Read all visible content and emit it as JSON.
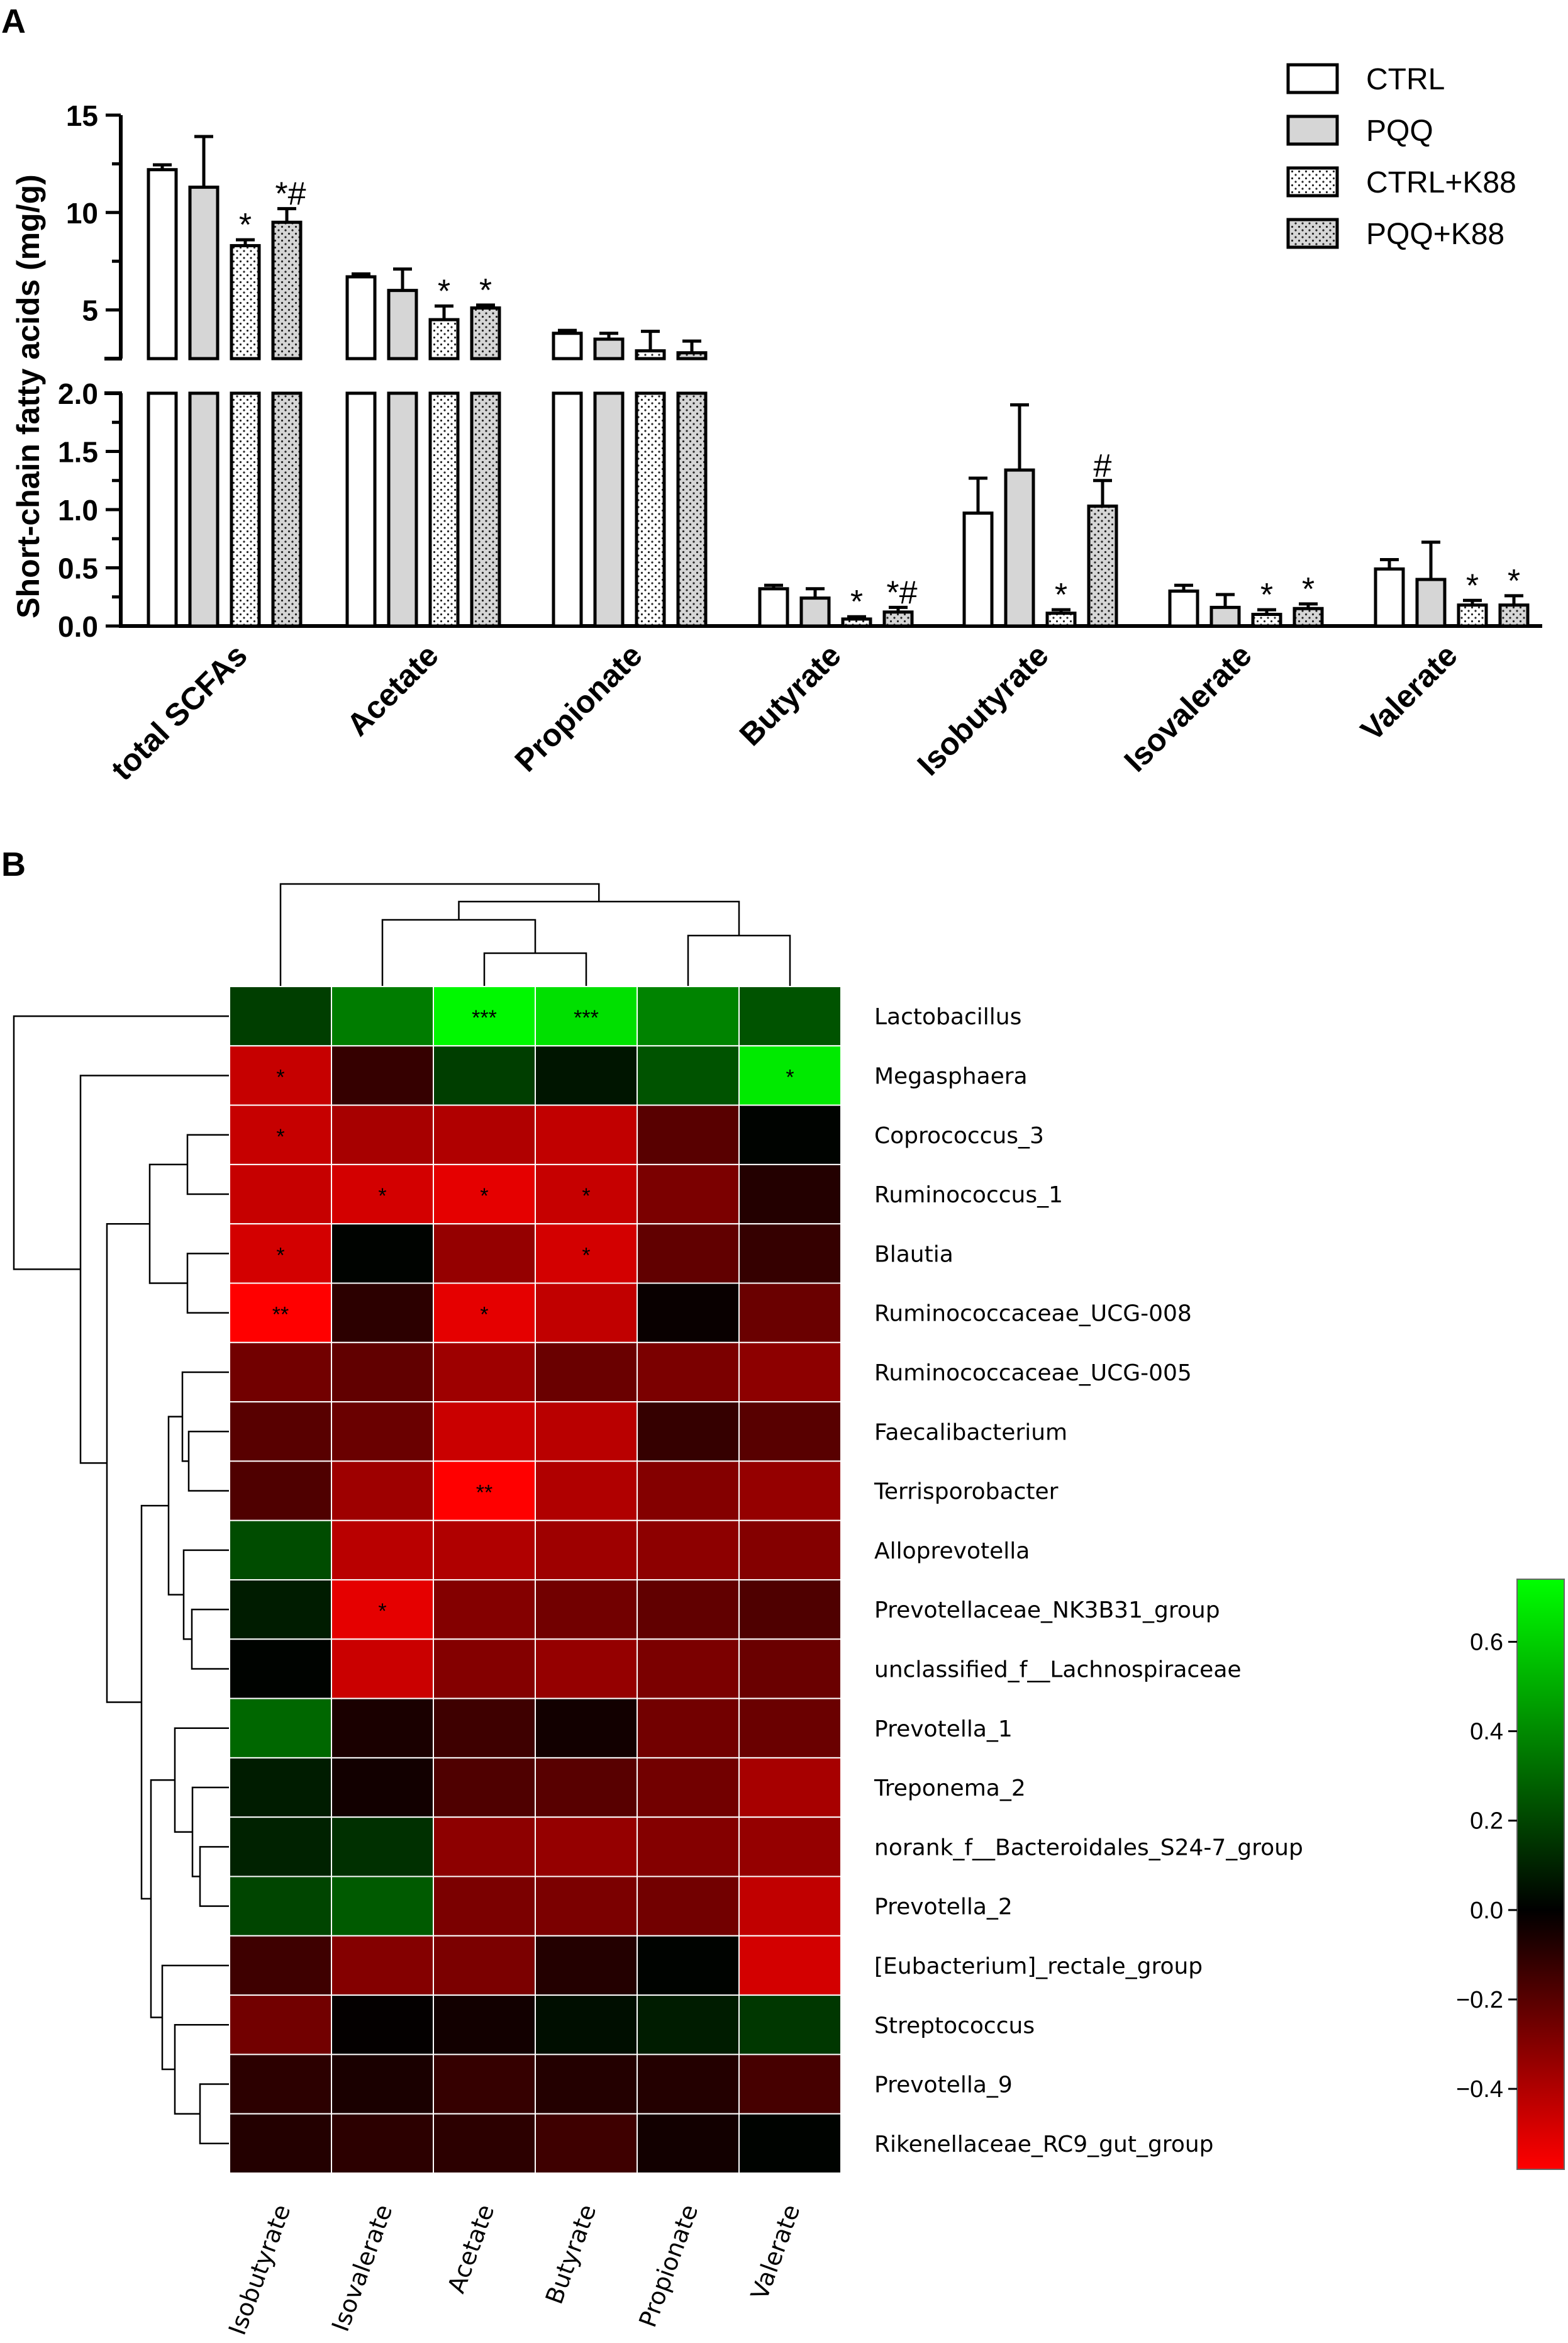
{
  "panel_labels": [
    "A",
    "B"
  ],
  "colors": {
    "bar_fill": [
      "#ffffff",
      "#d6d6d6",
      "#ffffff",
      "#d6d6d6"
    ],
    "bar_stroke": "#000000",
    "heat_low": "#ff0000",
    "heat_mid": "#000000",
    "heat_high": "#00ff00"
  },
  "chart_data": [
    {
      "type": "bar",
      "panel": "A",
      "ylabel": "Short-chain fatty acids (mg/g)",
      "axis_break": true,
      "lower_ylim": [
        0,
        2.0
      ],
      "lower_ticks": [
        "0.0",
        "0.5",
        "1.0",
        "1.5",
        "2.0"
      ],
      "upper_ylim": [
        2.5,
        15
      ],
      "upper_ticks": [
        "5",
        "10",
        "15"
      ],
      "categories": [
        "total SCFAs",
        "Acetate",
        "Propionate",
        "Butyrate",
        "Isobutyrate",
        "Isovalerate",
        "Valerate"
      ],
      "legend": [
        "CTRL",
        "PQQ",
        "CTRL+K88",
        "PQQ+K88"
      ],
      "legend_position": "top-right",
      "series": [
        {
          "name": "CTRL",
          "values": [
            12.2,
            6.7,
            3.8,
            0.32,
            0.97,
            0.3,
            0.49
          ],
          "errors": [
            0.25,
            0.15,
            0.15,
            0.03,
            0.3,
            0.05,
            0.08
          ]
        },
        {
          "name": "PQQ",
          "values": [
            11.3,
            6.0,
            3.5,
            0.24,
            1.34,
            0.16,
            0.4
          ],
          "errors": [
            2.6,
            1.1,
            0.3,
            0.08,
            0.56,
            0.11,
            0.32
          ]
        },
        {
          "name": "CTRL+K88",
          "values": [
            8.3,
            4.5,
            2.9,
            0.06,
            0.11,
            0.1,
            0.18
          ],
          "errors": [
            0.3,
            0.7,
            1.0,
            0.02,
            0.03,
            0.04,
            0.04
          ]
        },
        {
          "name": "PQQ+K88",
          "values": [
            9.5,
            5.1,
            2.8,
            0.12,
            1.03,
            0.15,
            0.18
          ],
          "errors": [
            0.7,
            0.15,
            0.6,
            0.04,
            0.22,
            0.04,
            0.08
          ]
        }
      ],
      "annotations": [
        [
          "",
          "",
          "*",
          "*#"
        ],
        [
          "",
          "",
          "*",
          "*"
        ],
        [
          "",
          "",
          "",
          ""
        ],
        [
          "",
          "",
          "*",
          "*#"
        ],
        [
          "",
          "",
          "*",
          "#"
        ],
        [
          "",
          "",
          "*",
          "*"
        ],
        [
          "",
          "",
          "*",
          "*"
        ]
      ]
    },
    {
      "type": "heatmap",
      "panel": "B",
      "columns": [
        "Isobutyrate",
        "Isovalerate",
        "Acetate",
        "Butyrate",
        "Propionate",
        "Valerate"
      ],
      "rows": [
        "Lactobacillus",
        "Megasphaera",
        "Coprococcus_3",
        "Ruminococcus_1",
        "Blautia",
        "Ruminococcaceae_UCG-008",
        "Ruminococcaceae_UCG-005",
        "Faecalibacterium",
        "Terrisporobacter",
        "Alloprevotella",
        "Prevotellaceae_NK3B31_group",
        "unclassified_f__Lachnospiraceae",
        "Prevotella_1",
        "Treponema_2",
        "norank_f__Bacteroidales_S24-7_group",
        "Prevotella_2",
        "[Eubacterium]_rectale_group",
        "Streptococcus",
        "Prevotella_9",
        "Rikenellaceae_RC9_gut_group"
      ],
      "values": [
        [
          0.18,
          0.36,
          0.72,
          0.65,
          0.38,
          0.24
        ],
        [
          -0.45,
          -0.12,
          0.18,
          0.06,
          0.24,
          0.68
        ],
        [
          -0.45,
          -0.38,
          -0.4,
          -0.44,
          -0.2,
          0.01
        ],
        [
          -0.45,
          -0.48,
          -0.52,
          -0.45,
          -0.28,
          -0.08
        ],
        [
          -0.48,
          0.01,
          -0.34,
          -0.48,
          -0.22,
          -0.12
        ],
        [
          -0.58,
          -0.1,
          -0.52,
          -0.44,
          -0.02,
          -0.24
        ],
        [
          -0.26,
          -0.22,
          -0.36,
          -0.24,
          -0.28,
          -0.32
        ],
        [
          -0.2,
          -0.24,
          -0.46,
          -0.42,
          -0.12,
          -0.2
        ],
        [
          -0.18,
          -0.36,
          -0.62,
          -0.4,
          -0.3,
          -0.34
        ],
        [
          0.22,
          -0.42,
          -0.4,
          -0.36,
          -0.32,
          -0.3
        ],
        [
          0.08,
          -0.52,
          -0.3,
          -0.26,
          -0.22,
          -0.18
        ],
        [
          0.01,
          -0.46,
          -0.3,
          -0.34,
          -0.28,
          -0.24
        ],
        [
          0.3,
          -0.06,
          -0.14,
          -0.04,
          -0.26,
          -0.24
        ],
        [
          0.08,
          -0.04,
          -0.18,
          -0.2,
          -0.26,
          -0.38
        ],
        [
          0.1,
          0.14,
          -0.32,
          -0.34,
          -0.3,
          -0.34
        ],
        [
          0.2,
          0.26,
          -0.28,
          -0.28,
          -0.26,
          -0.44
        ],
        [
          -0.14,
          -0.3,
          -0.28,
          -0.08,
          0.01,
          -0.48
        ],
        [
          -0.26,
          -0.01,
          -0.04,
          0.04,
          0.08,
          0.16
        ],
        [
          -0.1,
          -0.06,
          -0.12,
          -0.08,
          -0.08,
          -0.16
        ],
        [
          -0.08,
          -0.1,
          -0.1,
          -0.14,
          -0.04,
          0.01
        ]
      ],
      "significance": [
        [
          "",
          "",
          "***",
          "***",
          "",
          ""
        ],
        [
          "*",
          "",
          "",
          "",
          "",
          "*"
        ],
        [
          "*",
          "",
          "",
          "",
          "",
          ""
        ],
        [
          "",
          "*",
          "*",
          "*",
          "",
          ""
        ],
        [
          "*",
          "",
          "",
          "*",
          "",
          ""
        ],
        [
          "**",
          "",
          "*",
          "",
          "",
          ""
        ],
        [
          "",
          "",
          "",
          "",
          "",
          ""
        ],
        [
          "",
          "",
          "",
          "",
          "",
          ""
        ],
        [
          "",
          "",
          "**",
          "",
          "",
          ""
        ],
        [
          "",
          "",
          "",
          "",
          "",
          ""
        ],
        [
          "",
          "*",
          "",
          "",
          "",
          ""
        ],
        [
          "",
          "",
          "",
          "",
          "",
          ""
        ],
        [
          "",
          "",
          "",
          "",
          "",
          ""
        ],
        [
          "",
          "",
          "",
          "",
          "",
          ""
        ],
        [
          "",
          "",
          "",
          "",
          "",
          ""
        ],
        [
          "",
          "",
          "",
          "",
          "",
          ""
        ],
        [
          "",
          "",
          "",
          "",
          "",
          ""
        ],
        [
          "",
          "",
          "",
          "",
          "",
          ""
        ],
        [
          "",
          "",
          "",
          "",
          "",
          ""
        ],
        [
          "",
          "",
          "",
          "",
          "",
          ""
        ]
      ],
      "colorbar": {
        "range": [
          -0.58,
          0.74
        ],
        "ticks": [
          "0.6",
          "0.4",
          "0.2",
          "0.0",
          "−0.2",
          "−0.4"
        ],
        "tick_values": [
          0.6,
          0.4,
          0.2,
          0.0,
          -0.2,
          -0.4
        ]
      },
      "dendrogram_columns": true,
      "dendrogram_rows": true
    }
  ]
}
